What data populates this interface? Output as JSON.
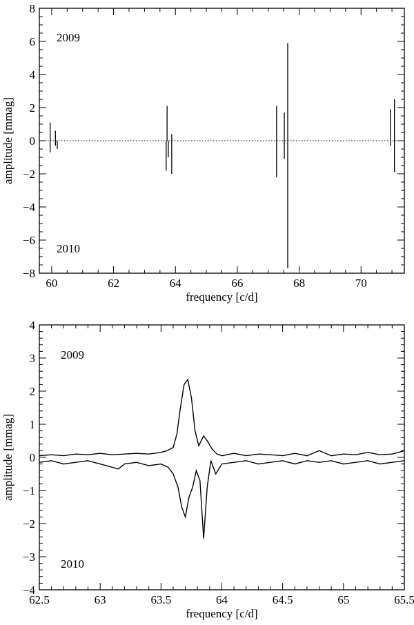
{
  "chart_data": [
    {
      "type": "line",
      "xlabel": "frequency [c/d]",
      "ylabel": "amplitude [mmag]",
      "xlim": [
        59.6,
        71.4
      ],
      "ylim": [
        -8,
        8
      ],
      "xticks": [
        60,
        62,
        64,
        66,
        68,
        70
      ],
      "yticks": [
        -8,
        -6,
        -4,
        -2,
        0,
        2,
        4,
        6,
        8
      ],
      "annotations": [
        "2009",
        "2010"
      ],
      "zero_line": "dotted",
      "series": [
        {
          "x": [
            59.95,
            60.12,
            63.73,
            63.88,
            67.27,
            67.52,
            67.63,
            70.95,
            71.08
          ],
          "values": [
            1.1,
            0.6,
            2.1,
            0.4,
            2.1,
            1.7,
            5.9,
            1.9,
            2.5
          ]
        },
        {
          "x": [
            59.95,
            60.12,
            60.18,
            63.7,
            63.77,
            63.88,
            67.27,
            67.52,
            67.63,
            70.95,
            71.08
          ],
          "values": [
            -0.7,
            -0.3,
            -0.5,
            -1.8,
            -1.0,
            -2.0,
            -2.2,
            -1.1,
            -7.7,
            -0.3,
            -1.9
          ]
        }
      ]
    },
    {
      "type": "line",
      "xlabel": "frequency [c/d]",
      "ylabel": "amplitude [mmag]",
      "xlim": [
        62.5,
        65.5
      ],
      "ylim": [
        -4,
        4
      ],
      "xticks": [
        62.5,
        63,
        63.5,
        64,
        64.5,
        65,
        65.5
      ],
      "yticks": [
        -4,
        -3,
        -2,
        -1,
        0,
        1,
        2,
        3,
        4
      ],
      "annotations": [
        "2009",
        "2010"
      ],
      "series": [
        {
          "x": [
            62.5,
            62.6,
            62.7,
            62.8,
            62.9,
            63.0,
            63.1,
            63.2,
            63.3,
            63.4,
            63.5,
            63.55,
            63.6,
            63.63,
            63.66,
            63.69,
            63.72,
            63.75,
            63.78,
            63.81,
            63.85,
            63.88,
            63.92,
            63.96,
            64.0,
            64.1,
            64.2,
            64.3,
            64.4,
            64.5,
            64.6,
            64.7,
            64.8,
            64.9,
            65.0,
            65.1,
            65.2,
            65.3,
            65.4,
            65.5
          ],
          "values": [
            0.05,
            0.08,
            0.05,
            0.1,
            0.08,
            0.12,
            0.08,
            0.1,
            0.12,
            0.1,
            0.15,
            0.2,
            0.3,
            0.7,
            1.5,
            2.2,
            2.35,
            1.8,
            0.8,
            0.35,
            0.65,
            0.5,
            0.25,
            0.1,
            0.05,
            0.12,
            0.05,
            0.1,
            0.08,
            0.05,
            0.12,
            0.05,
            0.2,
            0.05,
            0.1,
            0.08,
            0.15,
            0.08,
            0.1,
            0.2
          ]
        },
        {
          "x": [
            62.5,
            62.6,
            62.7,
            62.8,
            62.9,
            63.0,
            63.1,
            63.15,
            63.2,
            63.3,
            63.4,
            63.5,
            63.56,
            63.6,
            63.64,
            63.67,
            63.7,
            63.73,
            63.76,
            63.79,
            63.82,
            63.85,
            63.88,
            63.91,
            63.95,
            64.0,
            64.1,
            64.2,
            64.3,
            64.4,
            64.5,
            64.6,
            64.7,
            64.8,
            64.9,
            65.0,
            65.1,
            65.2,
            65.3,
            65.4,
            65.5
          ],
          "values": [
            -0.15,
            -0.1,
            -0.2,
            -0.15,
            -0.1,
            -0.2,
            -0.3,
            -0.35,
            -0.2,
            -0.15,
            -0.25,
            -0.2,
            -0.3,
            -0.5,
            -0.9,
            -1.5,
            -1.8,
            -1.2,
            -0.9,
            -0.4,
            -0.7,
            -2.45,
            -0.9,
            -0.1,
            -0.5,
            -0.2,
            -0.15,
            -0.1,
            -0.2,
            -0.15,
            -0.1,
            -0.2,
            -0.1,
            -0.15,
            -0.1,
            -0.2,
            -0.15,
            -0.1,
            -0.2,
            -0.15,
            -0.1
          ]
        }
      ]
    }
  ]
}
